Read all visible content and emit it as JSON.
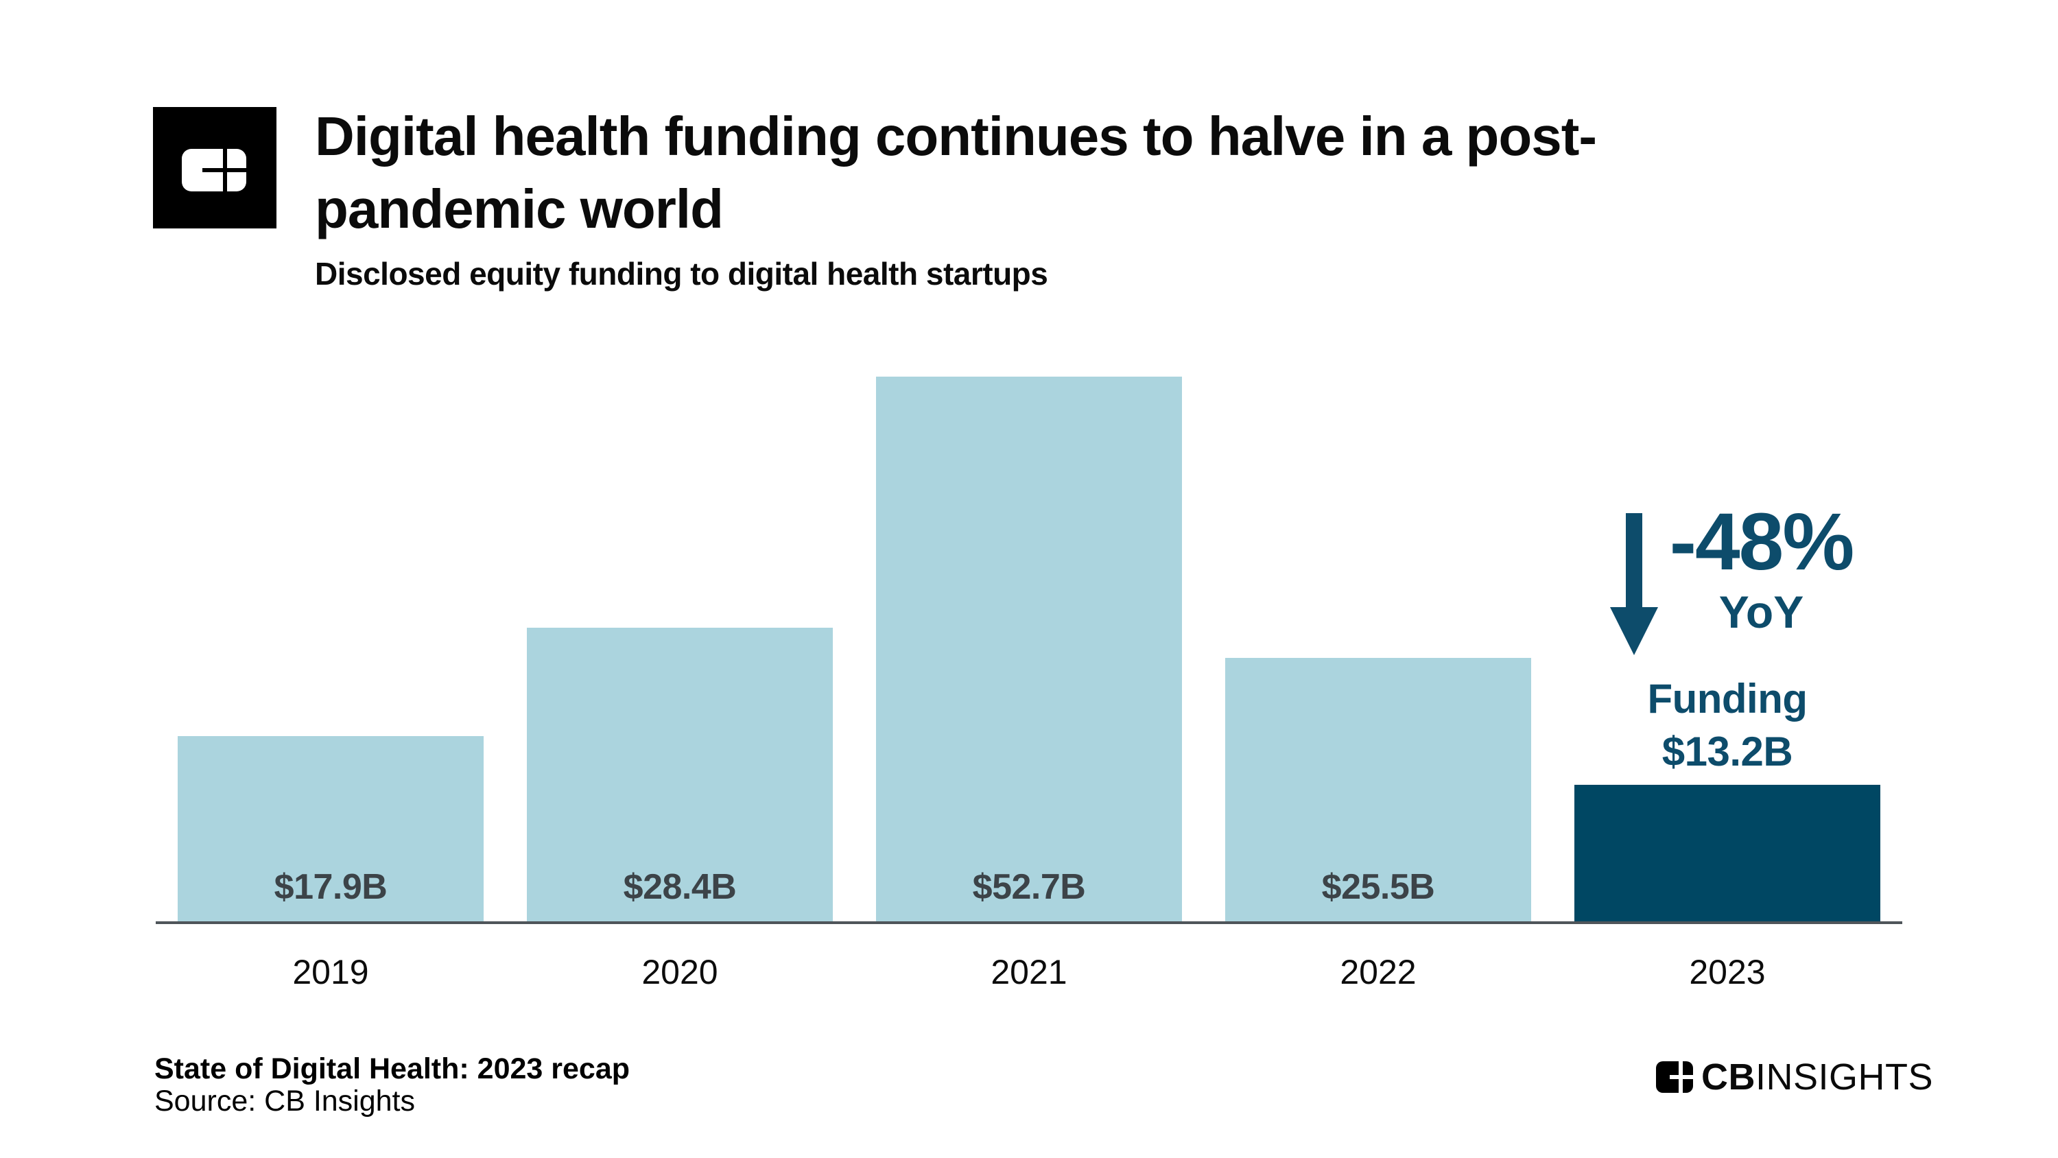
{
  "header": {
    "title_lines": [
      "Digital health funding continues to halve in a post-",
      "pandemic world"
    ],
    "subtitle": "Disclosed equity funding to digital health startups"
  },
  "chart_data": {
    "type": "bar",
    "title": "Digital health funding continues to halve in a post-pandemic world",
    "subtitle": "Disclosed equity funding to digital health startups",
    "categories": [
      "2019",
      "2020",
      "2021",
      "2022",
      "2023"
    ],
    "values": [
      17.9,
      28.4,
      52.7,
      25.5,
      13.2
    ],
    "bar_labels": [
      "$17.9B",
      "$28.4B",
      "$52.7B",
      "$25.5B",
      ""
    ],
    "highlight_index": 4,
    "ylim": [
      0,
      52.7
    ],
    "grid": false,
    "legend": false,
    "colors": {
      "bar_default": "#abd4de",
      "bar_highlight": "#004763",
      "bar_label_text": "#3c4348",
      "annotation_text": "#0d4c6b",
      "axis_line": "#4f555a"
    },
    "annotation": {
      "arrow_icon": "down-arrow-icon",
      "delta": "-48%",
      "delta_period": "YoY",
      "highlight_label_line1": "Funding",
      "highlight_label_line2": "$13.2B"
    }
  },
  "footer": {
    "report_title": "State of Digital Health: 2023 recap",
    "source": "Source: CB Insights",
    "brand_name_bold": "CB",
    "brand_name_regular": "INSIGHTS"
  }
}
